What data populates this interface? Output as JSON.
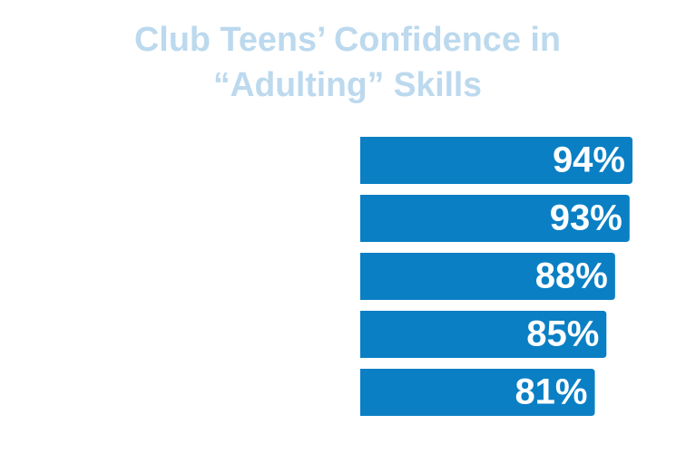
{
  "chart_data": {
    "type": "bar",
    "orientation": "horizontal",
    "title": [
      "Club Teens’ Confidence in",
      "“Adulting” Skills"
    ],
    "values": [
      94,
      93,
      88,
      85,
      81
    ],
    "value_labels": [
      "94%",
      "93%",
      "88%",
      "85%",
      "81%"
    ],
    "color": "#0a7fc4"
  }
}
